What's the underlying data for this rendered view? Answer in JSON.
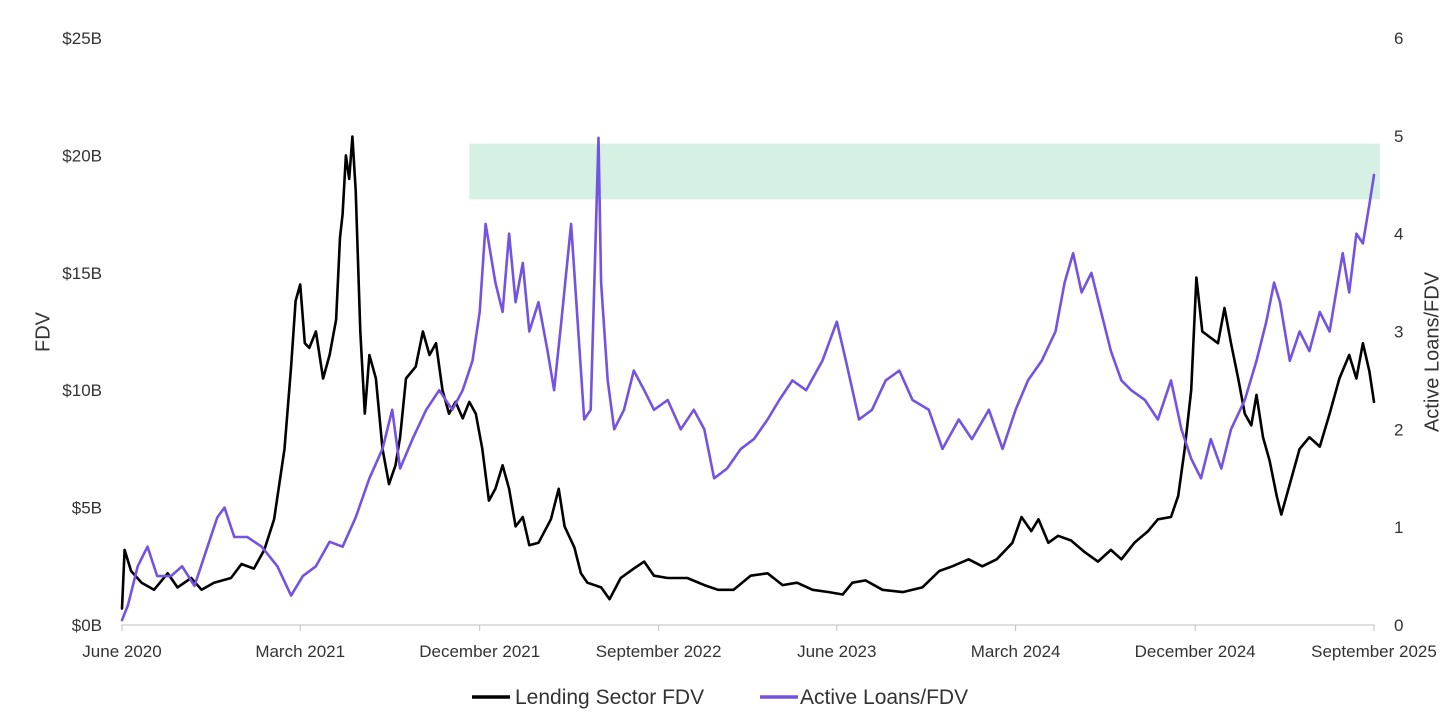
{
  "chart_data": {
    "type": "line",
    "xlabel": "",
    "x_ticks": [
      "June 2020",
      "March 2021",
      "December 2021",
      "September 2022",
      "June 2023",
      "March 2024",
      "December 2024",
      "September 2025"
    ],
    "x_tick_dates": [
      "2020-06-01",
      "2021-03-01",
      "2021-12-01",
      "2022-09-01",
      "2023-06-01",
      "2024-03-01",
      "2024-12-01",
      "2025-09-01"
    ],
    "xlim": [
      "2020-06-01",
      "2025-09-01"
    ],
    "y_left": {
      "label": "FDV",
      "ticks": [
        "$0B",
        "$5B",
        "$10B",
        "$15B",
        "$20B",
        "$25B"
      ],
      "lim": [
        0,
        25
      ],
      "unit": "$B"
    },
    "y_right": {
      "label": "Active Loans/FDV",
      "ticks": [
        "0",
        "1",
        "2",
        "3",
        "4",
        "5",
        "6"
      ],
      "lim": [
        0,
        6
      ]
    },
    "highlight_band": {
      "axis": "right",
      "y_range": [
        4.35,
        4.92
      ],
      "x_range": [
        "2021-11-15",
        "2025-09-10"
      ],
      "color": "#d6f1e3"
    },
    "legend": {
      "position": "bottom-center"
    },
    "grid": false,
    "series": [
      {
        "name": "Lending Sector FDV",
        "axis": "left",
        "color": "#000000",
        "points": [
          [
            "2020-06-01",
            0.7
          ],
          [
            "2020-06-05",
            3.2
          ],
          [
            "2020-06-15",
            2.3
          ],
          [
            "2020-07-01",
            1.8
          ],
          [
            "2020-07-20",
            1.5
          ],
          [
            "2020-08-10",
            2.2
          ],
          [
            "2020-08-25",
            1.6
          ],
          [
            "2020-09-15",
            2.0
          ],
          [
            "2020-10-01",
            1.5
          ],
          [
            "2020-10-20",
            1.8
          ],
          [
            "2020-11-15",
            2.0
          ],
          [
            "2020-12-01",
            2.6
          ],
          [
            "2020-12-20",
            2.4
          ],
          [
            "2021-01-05",
            3.2
          ],
          [
            "2021-01-20",
            4.5
          ],
          [
            "2021-02-05",
            7.5
          ],
          [
            "2021-02-15",
            11.0
          ],
          [
            "2021-02-22",
            13.8
          ],
          [
            "2021-03-01",
            14.5
          ],
          [
            "2021-03-08",
            12.0
          ],
          [
            "2021-03-15",
            11.8
          ],
          [
            "2021-03-25",
            12.5
          ],
          [
            "2021-04-05",
            10.5
          ],
          [
            "2021-04-15",
            11.5
          ],
          [
            "2021-04-25",
            13.0
          ],
          [
            "2021-05-01",
            16.5
          ],
          [
            "2021-05-05",
            17.5
          ],
          [
            "2021-05-10",
            20.0
          ],
          [
            "2021-05-15",
            19.0
          ],
          [
            "2021-05-20",
            20.8
          ],
          [
            "2021-05-25",
            18.5
          ],
          [
            "2021-06-01",
            12.5
          ],
          [
            "2021-06-08",
            9.0
          ],
          [
            "2021-06-15",
            11.5
          ],
          [
            "2021-06-25",
            10.5
          ],
          [
            "2021-07-05",
            7.5
          ],
          [
            "2021-07-15",
            6.0
          ],
          [
            "2021-07-25",
            6.8
          ],
          [
            "2021-08-01",
            8.0
          ],
          [
            "2021-08-10",
            10.5
          ],
          [
            "2021-08-25",
            11.0
          ],
          [
            "2021-09-05",
            12.5
          ],
          [
            "2021-09-15",
            11.5
          ],
          [
            "2021-09-25",
            12.0
          ],
          [
            "2021-10-05",
            10.0
          ],
          [
            "2021-10-15",
            9.0
          ],
          [
            "2021-10-25",
            9.5
          ],
          [
            "2021-11-05",
            8.8
          ],
          [
            "2021-11-15",
            9.5
          ],
          [
            "2021-11-25",
            9.0
          ],
          [
            "2021-12-05",
            7.5
          ],
          [
            "2021-12-15",
            5.3
          ],
          [
            "2021-12-25",
            5.8
          ],
          [
            "2022-01-05",
            6.8
          ],
          [
            "2022-01-15",
            5.8
          ],
          [
            "2022-01-25",
            4.2
          ],
          [
            "2022-02-05",
            4.6
          ],
          [
            "2022-02-15",
            3.4
          ],
          [
            "2022-03-01",
            3.5
          ],
          [
            "2022-03-20",
            4.5
          ],
          [
            "2022-04-01",
            5.8
          ],
          [
            "2022-04-10",
            4.2
          ],
          [
            "2022-04-25",
            3.3
          ],
          [
            "2022-05-05",
            2.2
          ],
          [
            "2022-05-15",
            1.8
          ],
          [
            "2022-06-05",
            1.6
          ],
          [
            "2022-06-18",
            1.1
          ],
          [
            "2022-07-05",
            2.0
          ],
          [
            "2022-07-25",
            2.4
          ],
          [
            "2022-08-10",
            2.7
          ],
          [
            "2022-08-25",
            2.1
          ],
          [
            "2022-09-15",
            2.0
          ],
          [
            "2022-10-15",
            2.0
          ],
          [
            "2022-11-10",
            1.7
          ],
          [
            "2022-12-01",
            1.5
          ],
          [
            "2022-12-25",
            1.5
          ],
          [
            "2023-01-20",
            2.1
          ],
          [
            "2023-02-15",
            2.2
          ],
          [
            "2023-03-10",
            1.7
          ],
          [
            "2023-04-01",
            1.8
          ],
          [
            "2023-04-25",
            1.5
          ],
          [
            "2023-05-20",
            1.4
          ],
          [
            "2023-06-10",
            1.3
          ],
          [
            "2023-06-25",
            1.8
          ],
          [
            "2023-07-15",
            1.9
          ],
          [
            "2023-08-10",
            1.5
          ],
          [
            "2023-09-10",
            1.4
          ],
          [
            "2023-10-10",
            1.6
          ],
          [
            "2023-11-05",
            2.3
          ],
          [
            "2023-11-25",
            2.5
          ],
          [
            "2023-12-20",
            2.8
          ],
          [
            "2024-01-10",
            2.5
          ],
          [
            "2024-02-01",
            2.8
          ],
          [
            "2024-02-25",
            3.5
          ],
          [
            "2024-03-10",
            4.6
          ],
          [
            "2024-03-25",
            4.0
          ],
          [
            "2024-04-05",
            4.5
          ],
          [
            "2024-04-20",
            3.5
          ],
          [
            "2024-05-05",
            3.8
          ],
          [
            "2024-05-25",
            3.6
          ],
          [
            "2024-06-15",
            3.1
          ],
          [
            "2024-07-05",
            2.7
          ],
          [
            "2024-07-25",
            3.2
          ],
          [
            "2024-08-10",
            2.8
          ],
          [
            "2024-08-30",
            3.5
          ],
          [
            "2024-09-20",
            4.0
          ],
          [
            "2024-10-05",
            4.5
          ],
          [
            "2024-10-25",
            4.6
          ],
          [
            "2024-11-05",
            5.5
          ],
          [
            "2024-11-15",
            7.5
          ],
          [
            "2024-11-25",
            10.0
          ],
          [
            "2024-12-03",
            14.8
          ],
          [
            "2024-12-12",
            12.5
          ],
          [
            "2025-01-05",
            12.0
          ],
          [
            "2025-01-15",
            13.5
          ],
          [
            "2025-01-25",
            12.0
          ],
          [
            "2025-02-05",
            10.5
          ],
          [
            "2025-02-15",
            9.0
          ],
          [
            "2025-02-25",
            8.5
          ],
          [
            "2025-03-05",
            9.8
          ],
          [
            "2025-03-15",
            8.0
          ],
          [
            "2025-03-25",
            7.0
          ],
          [
            "2025-04-05",
            5.5
          ],
          [
            "2025-04-12",
            4.7
          ],
          [
            "2025-04-25",
            6.0
          ],
          [
            "2025-05-10",
            7.5
          ],
          [
            "2025-05-25",
            8.0
          ],
          [
            "2025-06-10",
            7.6
          ],
          [
            "2025-06-25",
            9.0
          ],
          [
            "2025-07-10",
            10.5
          ],
          [
            "2025-07-25",
            11.5
          ],
          [
            "2025-08-05",
            10.5
          ],
          [
            "2025-08-15",
            12.0
          ],
          [
            "2025-08-25",
            10.8
          ],
          [
            "2025-09-01",
            9.5
          ]
        ]
      },
      {
        "name": "Active Loans/FDV",
        "axis": "right",
        "color": "#7453e2",
        "points": [
          [
            "2020-06-01",
            0.05
          ],
          [
            "2020-06-10",
            0.2
          ],
          [
            "2020-06-25",
            0.6
          ],
          [
            "2020-07-10",
            0.8
          ],
          [
            "2020-07-25",
            0.5
          ],
          [
            "2020-08-15",
            0.5
          ],
          [
            "2020-09-01",
            0.6
          ],
          [
            "2020-09-20",
            0.4
          ],
          [
            "2020-10-10",
            0.8
          ],
          [
            "2020-10-25",
            1.1
          ],
          [
            "2020-11-05",
            1.2
          ],
          [
            "2020-11-20",
            0.9
          ],
          [
            "2020-12-10",
            0.9
          ],
          [
            "2021-01-01",
            0.8
          ],
          [
            "2021-01-25",
            0.6
          ],
          [
            "2021-02-15",
            0.3
          ],
          [
            "2021-03-05",
            0.5
          ],
          [
            "2021-03-25",
            0.6
          ],
          [
            "2021-04-15",
            0.85
          ],
          [
            "2021-05-05",
            0.8
          ],
          [
            "2021-05-25",
            1.1
          ],
          [
            "2021-06-15",
            1.5
          ],
          [
            "2021-07-05",
            1.8
          ],
          [
            "2021-07-20",
            2.2
          ],
          [
            "2021-08-01",
            1.6
          ],
          [
            "2021-08-20",
            1.9
          ],
          [
            "2021-09-10",
            2.2
          ],
          [
            "2021-09-30",
            2.4
          ],
          [
            "2021-10-20",
            2.2
          ],
          [
            "2021-11-05",
            2.4
          ],
          [
            "2021-11-20",
            2.7
          ],
          [
            "2021-12-01",
            3.2
          ],
          [
            "2021-12-10",
            4.1
          ],
          [
            "2021-12-25",
            3.5
          ],
          [
            "2022-01-05",
            3.2
          ],
          [
            "2022-01-15",
            4.0
          ],
          [
            "2022-01-25",
            3.3
          ],
          [
            "2022-02-05",
            3.7
          ],
          [
            "2022-02-15",
            3.0
          ],
          [
            "2022-03-01",
            3.3
          ],
          [
            "2022-03-15",
            2.8
          ],
          [
            "2022-03-25",
            2.4
          ],
          [
            "2022-04-05",
            3.1
          ],
          [
            "2022-04-20",
            4.1
          ],
          [
            "2022-05-01",
            3.0
          ],
          [
            "2022-05-10",
            2.1
          ],
          [
            "2022-05-20",
            2.2
          ],
          [
            "2022-06-01",
            4.98
          ],
          [
            "2022-06-05",
            3.5
          ],
          [
            "2022-06-15",
            2.5
          ],
          [
            "2022-06-25",
            2.0
          ],
          [
            "2022-07-10",
            2.2
          ],
          [
            "2022-07-25",
            2.6
          ],
          [
            "2022-08-10",
            2.4
          ],
          [
            "2022-08-25",
            2.2
          ],
          [
            "2022-09-15",
            2.3
          ],
          [
            "2022-10-05",
            2.0
          ],
          [
            "2022-10-25",
            2.2
          ],
          [
            "2022-11-10",
            2.0
          ],
          [
            "2022-11-25",
            1.5
          ],
          [
            "2022-12-15",
            1.6
          ],
          [
            "2023-01-05",
            1.8
          ],
          [
            "2023-01-25",
            1.9
          ],
          [
            "2023-02-15",
            2.1
          ],
          [
            "2023-03-05",
            2.3
          ],
          [
            "2023-03-25",
            2.5
          ],
          [
            "2023-04-15",
            2.4
          ],
          [
            "2023-05-10",
            2.7
          ],
          [
            "2023-06-01",
            3.1
          ],
          [
            "2023-06-15",
            2.7
          ],
          [
            "2023-07-05",
            2.1
          ],
          [
            "2023-07-25",
            2.2
          ],
          [
            "2023-08-15",
            2.5
          ],
          [
            "2023-09-05",
            2.6
          ],
          [
            "2023-09-25",
            2.3
          ],
          [
            "2023-10-20",
            2.2
          ],
          [
            "2023-11-10",
            1.8
          ],
          [
            "2023-12-05",
            2.1
          ],
          [
            "2023-12-25",
            1.9
          ],
          [
            "2024-01-20",
            2.2
          ],
          [
            "2024-02-10",
            1.8
          ],
          [
            "2024-03-01",
            2.2
          ],
          [
            "2024-03-20",
            2.5
          ],
          [
            "2024-04-10",
            2.7
          ],
          [
            "2024-05-01",
            3.0
          ],
          [
            "2024-05-15",
            3.5
          ],
          [
            "2024-05-28",
            3.8
          ],
          [
            "2024-06-10",
            3.4
          ],
          [
            "2024-06-25",
            3.6
          ],
          [
            "2024-07-10",
            3.2
          ],
          [
            "2024-07-25",
            2.8
          ],
          [
            "2024-08-10",
            2.5
          ],
          [
            "2024-08-25",
            2.4
          ],
          [
            "2024-09-15",
            2.3
          ],
          [
            "2024-10-05",
            2.1
          ],
          [
            "2024-10-25",
            2.5
          ],
          [
            "2024-11-10",
            2.0
          ],
          [
            "2024-11-25",
            1.7
          ],
          [
            "2024-12-10",
            1.5
          ],
          [
            "2024-12-25",
            1.9
          ],
          [
            "2025-01-10",
            1.6
          ],
          [
            "2025-01-25",
            2.0
          ],
          [
            "2025-02-15",
            2.3
          ],
          [
            "2025-03-05",
            2.7
          ],
          [
            "2025-03-20",
            3.1
          ],
          [
            "2025-04-01",
            3.5
          ],
          [
            "2025-04-10",
            3.3
          ],
          [
            "2025-04-25",
            2.7
          ],
          [
            "2025-05-10",
            3.0
          ],
          [
            "2025-05-25",
            2.8
          ],
          [
            "2025-06-10",
            3.2
          ],
          [
            "2025-06-25",
            3.0
          ],
          [
            "2025-07-05",
            3.4
          ],
          [
            "2025-07-15",
            3.8
          ],
          [
            "2025-07-25",
            3.4
          ],
          [
            "2025-08-05",
            4.0
          ],
          [
            "2025-08-15",
            3.9
          ],
          [
            "2025-08-25",
            4.3
          ],
          [
            "2025-09-01",
            4.6
          ]
        ]
      }
    ]
  }
}
